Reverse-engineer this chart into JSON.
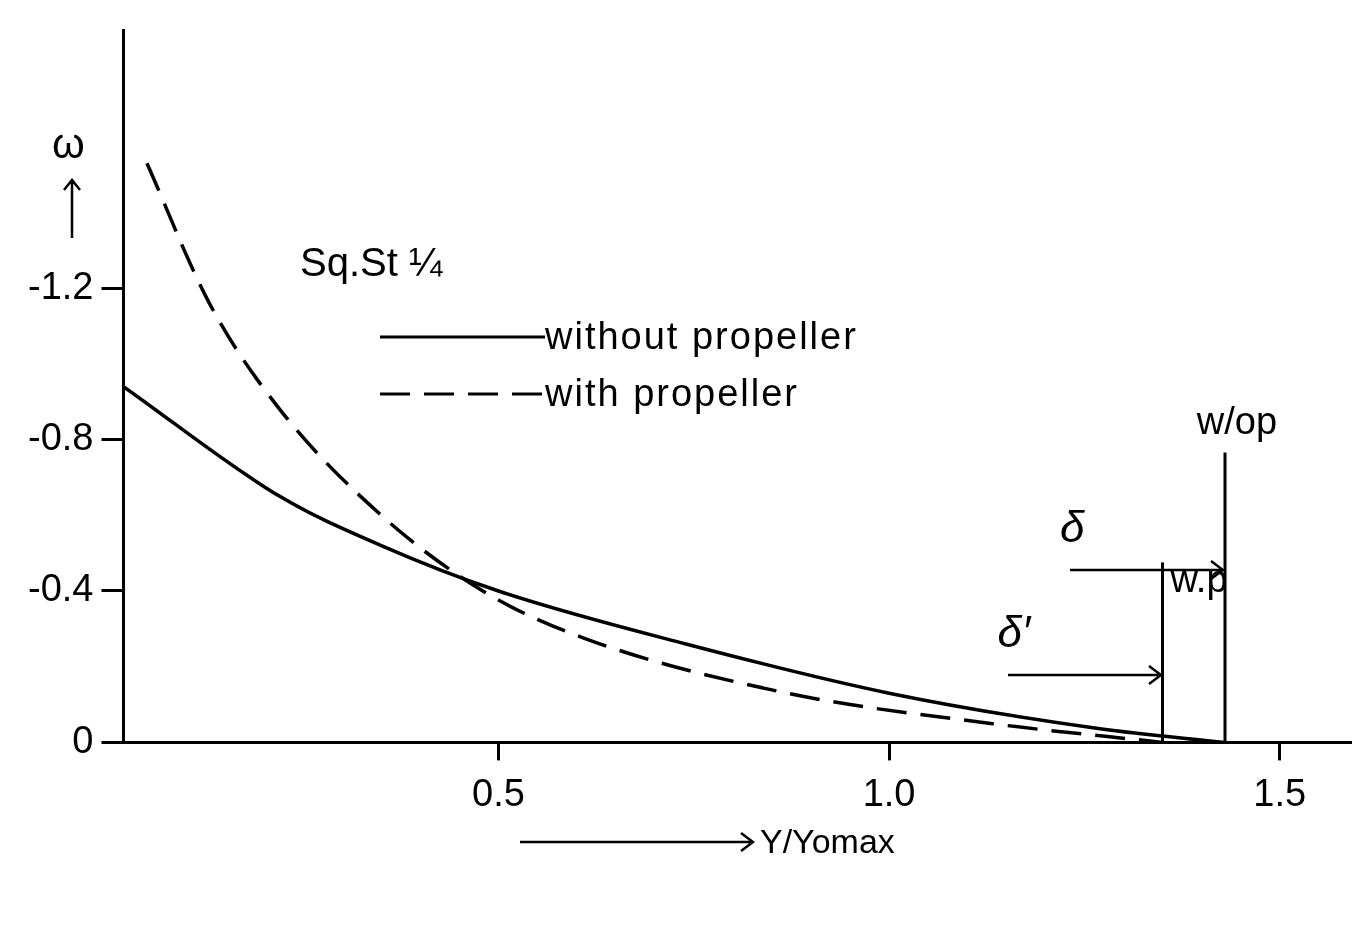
{
  "chart_data": {
    "type": "line",
    "xlabel": "Y/Yomax",
    "ylabel": "ω",
    "xlim": [
      0.02,
      1.59
    ],
    "ylim": [
      0,
      -1.88
    ],
    "xticks": [
      0.5,
      {
        "value": 1,
        "label": "1.0"
      },
      1.5
    ],
    "yticks": [
      -1.2,
      -0.8,
      -0.4,
      0
    ],
    "grid": false,
    "legend": "left",
    "marker": "none",
    "series": [
      {
        "name": "without propeller",
        "color": "#000000",
        "line_style": "solid",
        "x": [
          0.02,
          0.22,
          0.35,
          0.5,
          0.74,
          1.0,
          1.27,
          1.43
        ],
        "values": [
          -0.94,
          -0.65,
          -0.52,
          -0.4,
          -0.26,
          -0.13,
          -0.036,
          0
        ]
      },
      {
        "name": "with propeller",
        "color": "#000000",
        "line_style": "dashed",
        "x": [
          0.05,
          0.13,
          0.22,
          0.35,
          0.48,
          0.61,
          0.87,
          1.13,
          1.35
        ],
        "values": [
          -1.53,
          -1.16,
          -0.88,
          -0.6,
          -0.4,
          -0.275,
          -0.13,
          -0.05,
          0
        ]
      }
    ],
    "ref_lines": [
      {
        "axis": "x",
        "value": 1.43,
        "label": "w/op",
        "color": "#000000"
      },
      {
        "axis": "x",
        "value": 1.35,
        "label": "w.p",
        "color": "#000000"
      }
    ],
    "annotations": [
      "Sq.St ¼",
      {
        "text": "δ",
        "x": 1.43,
        "y": -0.455
      },
      {
        "text": "δ′",
        "x": 1.35,
        "y": -0.178
      }
    ]
  }
}
